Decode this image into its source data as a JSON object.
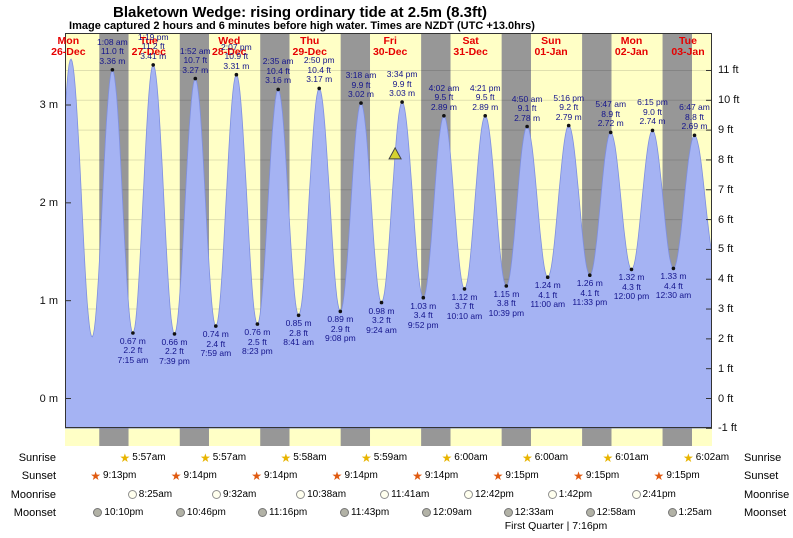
{
  "title": "Blaketown Wedge: rising ordinary tide at 2.5m (8.3ft)",
  "subtitle": "Image captured 2 hours and 6 minutes before high water. Times are NZDT (UTC +13.0hrs)",
  "chart_data": {
    "type": "area",
    "title": "Blaketown Wedge: rising ordinary tide at 2.5m (8.3ft)",
    "ylabel_left": "metres",
    "ylabel_right": "feet",
    "y_range_m": [
      -0.33,
      3.53
    ],
    "window": {
      "start_day": "26-Dec",
      "start_time": "11:00 am",
      "end_day": "03-Jan",
      "end_time": "12:00 pm"
    },
    "days": [
      {
        "dow": "Mon",
        "date": "26-Dec"
      },
      {
        "dow": "Tue",
        "date": "27-Dec"
      },
      {
        "dow": "Wed",
        "date": "28-Dec"
      },
      {
        "dow": "Thu",
        "date": "29-Dec"
      },
      {
        "dow": "Fri",
        "date": "30-Dec"
      },
      {
        "dow": "Sat",
        "date": "31-Dec"
      },
      {
        "dow": "Sun",
        "date": "01-Jan"
      },
      {
        "dow": "Mon",
        "date": "02-Jan"
      },
      {
        "dow": "Tue",
        "date": "03-Jan"
      }
    ],
    "y_left_ticks": [
      {
        "label": "3 m",
        "m": 3
      },
      {
        "label": "2 m",
        "m": 2
      },
      {
        "label": "1 m",
        "m": 1
      },
      {
        "label": "0 m",
        "m": 0
      }
    ],
    "y_right_ticks": [
      {
        "label": "11 ft",
        "ft": 11
      },
      {
        "label": "10 ft",
        "ft": 10
      },
      {
        "label": "9 ft",
        "ft": 9
      },
      {
        "label": "8 ft",
        "ft": 8
      },
      {
        "label": "7 ft",
        "ft": 7
      },
      {
        "label": "6 ft",
        "ft": 6
      },
      {
        "label": "5 ft",
        "ft": 5
      },
      {
        "label": "4 ft",
        "ft": 4
      },
      {
        "label": "3 ft",
        "ft": 3
      },
      {
        "label": "2 ft",
        "ft": 2
      },
      {
        "label": "1 ft",
        "ft": 1
      },
      {
        "label": "0 ft",
        "ft": 0
      },
      {
        "label": "-1 ft",
        "ft": -1
      }
    ],
    "high_tides": [
      {
        "day": "27-Dec",
        "time": "1:08 am",
        "ft": "11.0 ft",
        "m_label": "3.36 m",
        "m": 3.36
      },
      {
        "day": "27-Dec",
        "time": "1:19 pm",
        "ft": "11.2 ft",
        "m_label": "3.41 m",
        "m": 3.41
      },
      {
        "day": "28-Dec",
        "time": "1:52 am",
        "ft": "10.7 ft",
        "m_label": "3.27 m",
        "m": 3.27
      },
      {
        "day": "28-Dec",
        "time": "2:07 pm",
        "ft": "10.9 ft",
        "m_label": "3.31 m",
        "m": 3.31
      },
      {
        "day": "29-Dec",
        "time": "2:35 am",
        "ft": "10.4 ft",
        "m_label": "3.16 m",
        "m": 3.16
      },
      {
        "day": "29-Dec",
        "time": "2:50 pm",
        "ft": "10.4 ft",
        "m_label": "3.17 m",
        "m": 3.17
      },
      {
        "day": "30-Dec",
        "time": "3:18 am",
        "ft": "9.9 ft",
        "m_label": "3.02 m",
        "m": 3.02
      },
      {
        "day": "30-Dec",
        "time": "3:34 pm",
        "ft": "9.9 ft",
        "m_label": "3.03 m",
        "m": 3.03
      },
      {
        "day": "31-Dec",
        "time": "4:02 am",
        "ft": "9.5 ft",
        "m_label": "2.89 m",
        "m": 2.89
      },
      {
        "day": "31-Dec",
        "time": "4:21 pm",
        "ft": "9.5 ft",
        "m_label": "2.89 m",
        "m": 2.89
      },
      {
        "day": "01-Jan",
        "time": "4:50 am",
        "ft": "9.1 ft",
        "m_label": "2.78 m",
        "m": 2.78
      },
      {
        "day": "01-Jan",
        "time": "5:16 pm",
        "ft": "9.2 ft",
        "m_label": "2.79 m",
        "m": 2.79
      },
      {
        "day": "02-Jan",
        "time": "5:47 am",
        "ft": "8.9 ft",
        "m_label": "2.72 m",
        "m": 2.72
      },
      {
        "day": "02-Jan",
        "time": "6:15 pm",
        "ft": "9.0 ft",
        "m_label": "2.74 m",
        "m": 2.74
      },
      {
        "day": "03-Jan",
        "time": "6:47 am",
        "ft": "8.8 ft",
        "m_label": "2.69 m",
        "m": 2.69
      }
    ],
    "low_tides": [
      {
        "day": "27-Dec",
        "m_label": "0.67 m",
        "ft": "2.2 ft",
        "time": "7:15 am",
        "m": 0.67
      },
      {
        "day": "27-Dec",
        "m_label": "0.66 m",
        "ft": "2.2 ft",
        "time": "7:39 pm",
        "m": 0.66
      },
      {
        "day": "28-Dec",
        "m_label": "0.74 m",
        "ft": "2.4 ft",
        "time": "7:59 am",
        "m": 0.74
      },
      {
        "day": "28-Dec",
        "m_label": "0.76 m",
        "ft": "2.5 ft",
        "time": "8:23 pm",
        "m": 0.76
      },
      {
        "day": "29-Dec",
        "m_label": "0.85 m",
        "ft": "2.8 ft",
        "time": "8:41 am",
        "m": 0.85
      },
      {
        "day": "29-Dec",
        "m_label": "0.89 m",
        "ft": "2.9 ft",
        "time": "9:08 pm",
        "m": 0.89
      },
      {
        "day": "30-Dec",
        "m_label": "0.98 m",
        "ft": "3.2 ft",
        "time": "9:24 am",
        "m": 0.98
      },
      {
        "day": "30-Dec",
        "m_label": "1.03 m",
        "ft": "3.4 ft",
        "time": "9:52 pm",
        "m": 1.03
      },
      {
        "day": "31-Dec",
        "m_label": "1.12 m",
        "ft": "3.7 ft",
        "time": "10:10 am",
        "m": 1.12
      },
      {
        "day": "31-Dec",
        "m_label": "1.15 m",
        "ft": "3.8 ft",
        "time": "10:39 pm",
        "m": 1.15
      },
      {
        "day": "01-Jan",
        "m_label": "1.24 m",
        "ft": "4.1 ft",
        "time": "11:00 am",
        "m": 1.24
      },
      {
        "day": "01-Jan",
        "m_label": "1.26 m",
        "ft": "4.1 ft",
        "time": "11:33 pm",
        "m": 1.26
      },
      {
        "day": "02-Jan",
        "m_label": "1.32 m",
        "ft": "4.3 ft",
        "time": "12:00 pm",
        "m": 1.32
      },
      {
        "day": "03-Jan",
        "m_label": "1.33 m",
        "ft": "4.4 ft",
        "time": "12:30 am",
        "m": 1.33
      }
    ],
    "edge_extremes": [
      {
        "day": "26-Dec",
        "time": "6:50 am",
        "m": 0.62
      },
      {
        "day": "26-Dec",
        "time": "12:45 pm",
        "m": 3.47
      },
      {
        "day": "26-Dec",
        "time": "7:05 pm",
        "m": 0.63
      },
      {
        "day": "03-Jan",
        "time": "1:15 pm",
        "m": 1.36
      }
    ],
    "current_marker": {
      "day": "30-Dec",
      "time": "1:28 pm",
      "m": 2.5
    },
    "colors": {
      "day_band": "#ffffc6",
      "night_band": "#979797",
      "tide_fill": "#a5b3f3",
      "tide_edge": "#7e8fe0",
      "date_red": "#e60000",
      "annotation_navy": "#14148c",
      "sunrise_star": "#e8b400",
      "sunset_star": "#e05a10",
      "marker_fill": "#d6d230"
    }
  },
  "astro": {
    "rows": [
      {
        "id": "sunrise",
        "label": "Sunrise",
        "icon": "sunrise-star-icon",
        "entries": [
          {
            "day": "27-Dec",
            "time": "5:57am"
          },
          {
            "day": "28-Dec",
            "time": "5:57am"
          },
          {
            "day": "29-Dec",
            "time": "5:58am"
          },
          {
            "day": "30-Dec",
            "time": "5:59am"
          },
          {
            "day": "31-Dec",
            "time": "6:00am"
          },
          {
            "day": "01-Jan",
            "time": "6:00am"
          },
          {
            "day": "02-Jan",
            "time": "6:01am"
          },
          {
            "day": "03-Jan",
            "time": "6:02am"
          }
        ]
      },
      {
        "id": "sunset",
        "label": "Sunset",
        "icon": "sunset-star-icon",
        "entries": [
          {
            "day": "26-Dec",
            "time": "9:13pm"
          },
          {
            "day": "27-Dec",
            "time": "9:14pm"
          },
          {
            "day": "28-Dec",
            "time": "9:14pm"
          },
          {
            "day": "29-Dec",
            "time": "9:14pm"
          },
          {
            "day": "30-Dec",
            "time": "9:14pm"
          },
          {
            "day": "31-Dec",
            "time": "9:15pm"
          },
          {
            "day": "01-Jan",
            "time": "9:15pm"
          },
          {
            "day": "02-Jan",
            "time": "9:15pm"
          }
        ]
      },
      {
        "id": "moonrise",
        "label": "Moonrise",
        "icon": "moonrise-circle-icon",
        "entries": [
          {
            "day": "27-Dec",
            "time": "8:25am"
          },
          {
            "day": "28-Dec",
            "time": "9:32am"
          },
          {
            "day": "29-Dec",
            "time": "10:38am"
          },
          {
            "day": "30-Dec",
            "time": "11:41am"
          },
          {
            "day": "31-Dec",
            "time": "12:42pm"
          },
          {
            "day": "01-Jan",
            "time": "1:42pm"
          },
          {
            "day": "02-Jan",
            "time": "2:41pm"
          }
        ]
      },
      {
        "id": "moonset",
        "label": "Moonset",
        "icon": "moonset-circle-icon",
        "entries": [
          {
            "day": "26-Dec",
            "time": "10:10pm"
          },
          {
            "day": "27-Dec",
            "time": "10:46pm"
          },
          {
            "day": "28-Dec",
            "time": "11:16pm"
          },
          {
            "day": "29-Dec",
            "time": "11:43pm"
          },
          {
            "day": "31-Dec",
            "time": "12:09am"
          },
          {
            "day": "01-Jan",
            "time": "12:33am"
          },
          {
            "day": "02-Jan",
            "time": "12:58am"
          },
          {
            "day": "03-Jan",
            "time": "1:25am"
          }
        ]
      }
    ],
    "moon_phase_note": "First Quarter | 7:16pm"
  }
}
